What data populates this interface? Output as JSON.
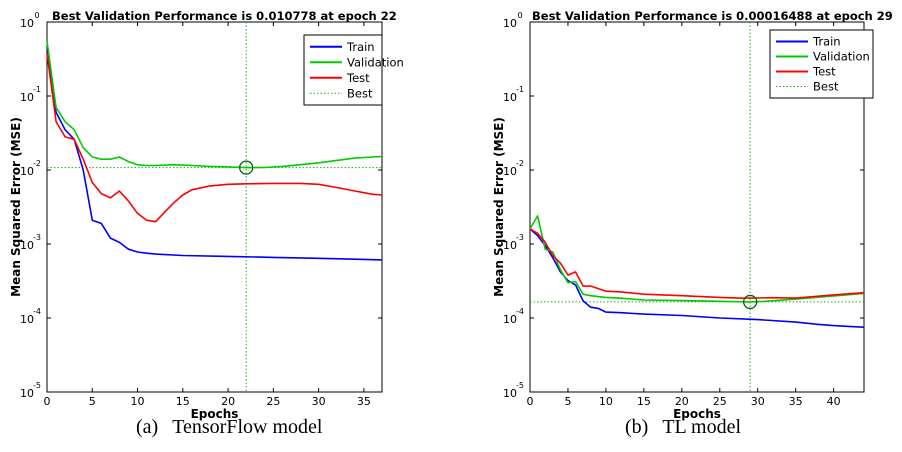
{
  "captions": [
    {
      "label": "(a)",
      "text": "TensorFlow model"
    },
    {
      "label": "(b)",
      "text": "TL model"
    }
  ],
  "chart_data": [
    {
      "type": "line",
      "title": "Best Validation Performance is 0.010778 at epoch 22",
      "xlabel": "Epochs",
      "ylabel": "Mean Squared Error  (MSE)",
      "yscale": "log",
      "xlim": [
        0,
        37
      ],
      "ylim": [
        1e-05,
        1
      ],
      "xticks": [
        "0",
        "5",
        "10",
        "15",
        "20",
        "25",
        "30",
        "35"
      ],
      "yticks": [
        {
          "base": "10",
          "exp": "0"
        },
        {
          "base": "10",
          "exp": "-1"
        },
        {
          "base": "10",
          "exp": "-2"
        },
        {
          "base": "10",
          "exp": "-3"
        },
        {
          "base": "10",
          "exp": "-4"
        },
        {
          "base": "10",
          "exp": "-5"
        }
      ],
      "legend_position": "top-right",
      "best": {
        "epoch": 22,
        "value": 0.010778
      },
      "series": [
        {
          "name": "Train",
          "color": "#0000ff",
          "x": [
            0,
            1,
            2,
            3,
            4,
            5,
            6,
            7,
            8,
            9,
            10,
            11,
            12,
            15,
            20,
            25,
            30,
            35,
            37
          ],
          "y": [
            0.4,
            0.06,
            0.035,
            0.026,
            0.01,
            0.0021,
            0.0019,
            0.0012,
            0.00105,
            0.00085,
            0.00078,
            0.00075,
            0.00073,
            0.0007,
            0.00068,
            0.00066,
            0.00064,
            0.00062,
            0.00061
          ]
        },
        {
          "name": "Validation",
          "color": "#00cc00",
          "x": [
            0,
            1,
            2,
            3,
            4,
            5,
            6,
            7,
            8,
            9,
            10,
            11,
            12,
            14,
            16,
            18,
            20,
            22,
            24,
            26,
            28,
            30,
            32,
            34,
            36,
            37
          ],
          "y": [
            0.55,
            0.07,
            0.045,
            0.035,
            0.02,
            0.015,
            0.014,
            0.014,
            0.015,
            0.013,
            0.0118,
            0.0115,
            0.0115,
            0.0118,
            0.0115,
            0.0112,
            0.011,
            0.010778,
            0.0108,
            0.0112,
            0.0118,
            0.0125,
            0.0135,
            0.0145,
            0.015,
            0.0152
          ]
        },
        {
          "name": "Test",
          "color": "#ff0000",
          "x": [
            0,
            1,
            2,
            3,
            4,
            5,
            6,
            7,
            8,
            9,
            10,
            11,
            12,
            13,
            14,
            15,
            16,
            18,
            20,
            22,
            25,
            28,
            30,
            32,
            34,
            36,
            37
          ],
          "y": [
            0.38,
            0.045,
            0.028,
            0.026,
            0.014,
            0.0068,
            0.0048,
            0.0042,
            0.0052,
            0.0038,
            0.0026,
            0.0021,
            0.002,
            0.0027,
            0.0036,
            0.0046,
            0.0054,
            0.0061,
            0.0064,
            0.0065,
            0.0066,
            0.0066,
            0.0064,
            0.0058,
            0.0052,
            0.0047,
            0.0046
          ]
        }
      ]
    },
    {
      "type": "line",
      "title": "Best Validation Performance is 0.00016488 at epoch 29",
      "xlabel": "Epochs",
      "ylabel": "Mean Squared Error  (MSE)",
      "yscale": "log",
      "xlim": [
        0,
        44
      ],
      "ylim": [
        1e-05,
        1
      ],
      "xticks": [
        "0",
        "5",
        "10",
        "15",
        "20",
        "25",
        "30",
        "35",
        "40"
      ],
      "yticks": [
        {
          "base": "10",
          "exp": "0"
        },
        {
          "base": "10",
          "exp": "-1"
        },
        {
          "base": "10",
          "exp": "-2"
        },
        {
          "base": "10",
          "exp": "-3"
        },
        {
          "base": "10",
          "exp": "-4"
        },
        {
          "base": "10",
          "exp": "-5"
        }
      ],
      "legend_position": "top-right",
      "best": {
        "epoch": 29,
        "value": 0.00016488
      },
      "series": [
        {
          "name": "Train",
          "color": "#0000ff",
          "x": [
            0,
            1,
            2,
            3,
            4,
            5,
            6,
            7,
            8,
            9,
            10,
            12,
            15,
            20,
            25,
            30,
            35,
            38,
            40,
            42,
            44
          ],
          "y": [
            0.0016,
            0.0013,
            0.00095,
            0.00065,
            0.00042,
            0.00032,
            0.00028,
            0.00017,
            0.00014,
            0.000135,
            0.00012,
            0.000118,
            0.000113,
            0.000108,
            0.0001,
            9.5e-05,
            8.8e-05,
            8.2e-05,
            7.9e-05,
            7.7e-05,
            7.5e-05
          ]
        },
        {
          "name": "Validation",
          "color": "#00cc00",
          "x": [
            0,
            1,
            2,
            3,
            4,
            5,
            6,
            7,
            8,
            10,
            12,
            15,
            20,
            25,
            29,
            31,
            35,
            40,
            44
          ],
          "y": [
            0.0016,
            0.0024,
            0.00085,
            0.00078,
            0.00045,
            0.0003,
            0.00031,
            0.00021,
            0.0002,
            0.00019,
            0.000185,
            0.000175,
            0.000172,
            0.000168,
            0.00016488,
            0.000168,
            0.00018,
            0.000198,
            0.000215
          ]
        },
        {
          "name": "Test",
          "color": "#ff0000",
          "x": [
            0,
            1,
            2,
            3,
            4,
            5,
            6,
            7,
            8,
            9,
            10,
            12,
            15,
            20,
            25,
            28,
            32,
            35,
            40,
            44
          ],
          "y": [
            0.0016,
            0.0014,
            0.00105,
            0.0007,
            0.00055,
            0.00038,
            0.00042,
            0.00027,
            0.00027,
            0.00025,
            0.00023,
            0.000225,
            0.00021,
            0.0002,
            0.00019,
            0.000185,
            0.000188,
            0.000186,
            0.000205,
            0.00022
          ]
        }
      ]
    }
  ]
}
